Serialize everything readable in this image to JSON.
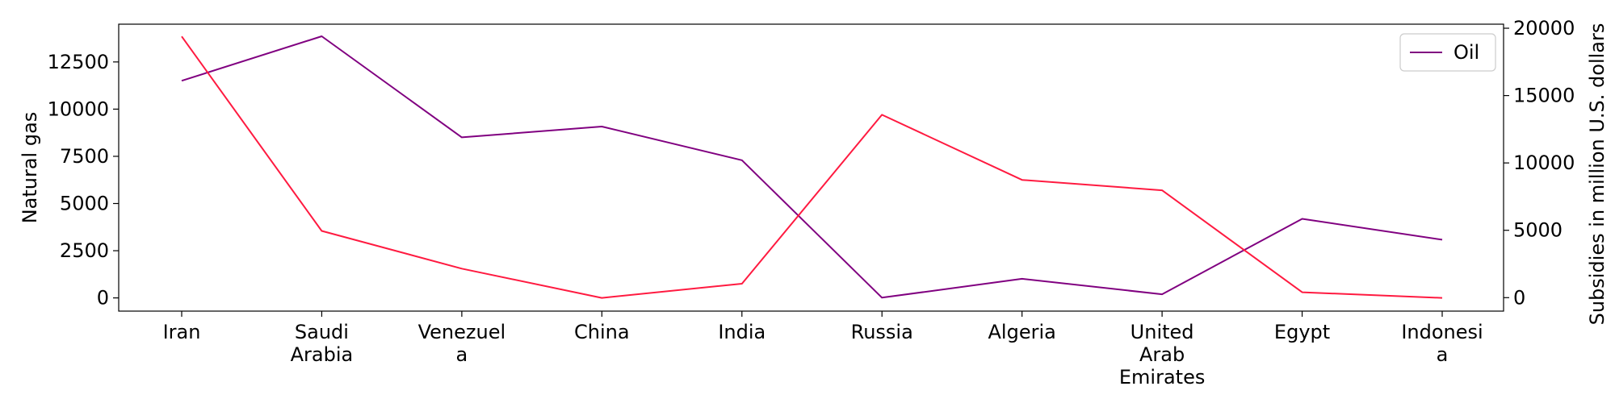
{
  "chart_data": {
    "type": "line",
    "categories": [
      [
        "Iran"
      ],
      [
        "Saudi",
        "Arabia"
      ],
      [
        "Venezuel",
        "a"
      ],
      [
        "China"
      ],
      [
        "India"
      ],
      [
        "Russia"
      ],
      [
        "Algeria"
      ],
      [
        "United",
        "Arab",
        "Emirates"
      ],
      [
        "Egypt"
      ],
      [
        "Indonesi",
        "a"
      ]
    ],
    "ylabel_left": "Natural gas",
    "ylabel_right": "Subsidies in million U.S. dollars",
    "ylim_left": [
      -700,
      14500
    ],
    "ylim_right": [
      -1000,
      20300
    ],
    "yticks_left": [
      0,
      2500,
      5000,
      7500,
      10000,
      12500
    ],
    "yticks_right": [
      0,
      5000,
      10000,
      15000,
      20000
    ],
    "series": [
      {
        "name": "Oil",
        "axis": "right",
        "color": "#800080",
        "values": [
          16100,
          19400,
          11900,
          12700,
          10200,
          0,
          1400,
          250,
          5850,
          4300
        ]
      },
      {
        "axis": "left",
        "color": "#ff1a40",
        "values": [
          13850,
          3550,
          1550,
          0,
          750,
          9700,
          6250,
          5700,
          300,
          0
        ]
      }
    ],
    "legend": {
      "position": "top-right",
      "entries": [
        "Oil"
      ]
    },
    "grid": false
  }
}
